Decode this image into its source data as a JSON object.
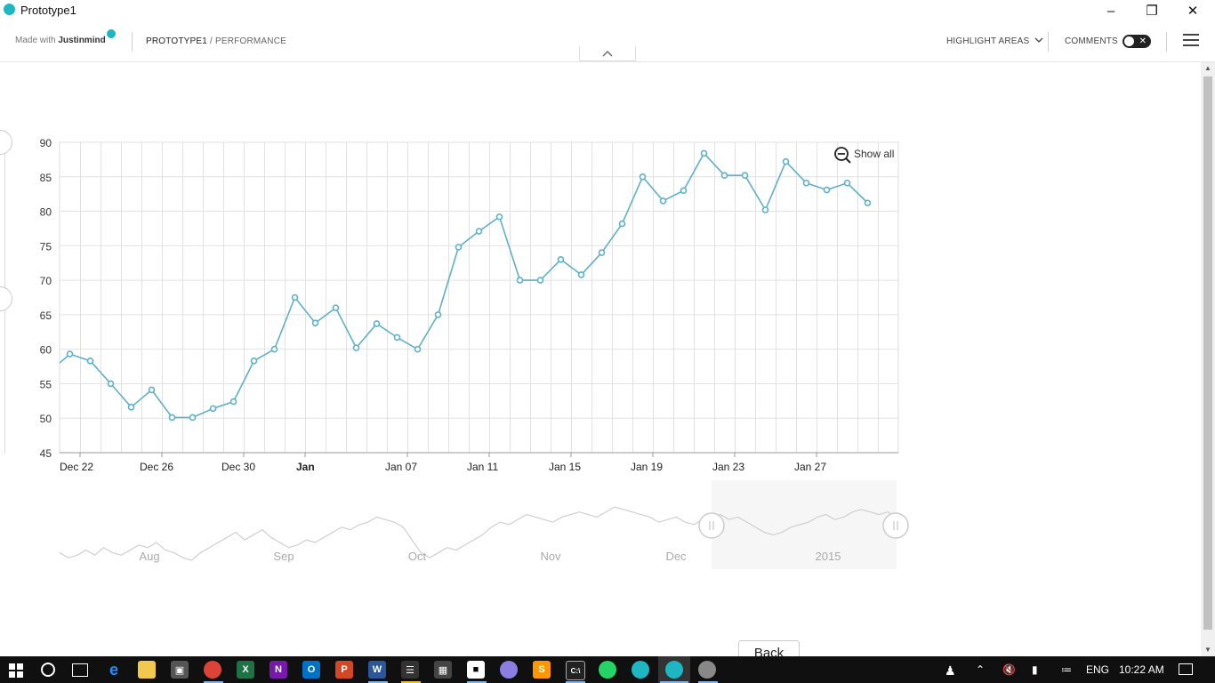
{
  "window": {
    "title": "Prototype1"
  },
  "header": {
    "made_with_prefix": "Made with",
    "made_with_brand": "Justinmind",
    "breadcrumb_project": "PROTOTYPE1",
    "breadcrumb_sep": " / ",
    "breadcrumb_page": "PERFORMANCE",
    "highlight_areas": "HIGHLIGHT AREAS",
    "comments": "COMMENTS",
    "comments_toggle_on": false
  },
  "chart_data": {
    "type": "line",
    "title": "",
    "xlabel": "",
    "ylabel": "",
    "ylim": [
      45,
      90
    ],
    "yticks": [
      45,
      50,
      55,
      60,
      65,
      70,
      75,
      80,
      85,
      90
    ],
    "xtick_labels": [
      "Dec 22",
      "Dec 26",
      "Dec 30",
      "Jan",
      "Jan 07",
      "Jan 11",
      "Jan 15",
      "Jan 19",
      "Jan 23",
      "Jan 27"
    ],
    "xtick_days": [
      1,
      5,
      9,
      12,
      17,
      21,
      25,
      29,
      33,
      37
    ],
    "grid": true,
    "zoom_button": "Show all",
    "series": [
      {
        "values": [
          58,
          59.3,
          58.3,
          55,
          51.6,
          54.1,
          50.1,
          50.1,
          51.4,
          52.4,
          58.3,
          60,
          67.5,
          63.8,
          66,
          60.2,
          63.7,
          61.7,
          60,
          65,
          74.8,
          77.1,
          79.2,
          70,
          70,
          73,
          70.8,
          74,
          78.2,
          85,
          81.5,
          83,
          88.4,
          85.2,
          85.2,
          80.2,
          87.2,
          84.1,
          83.1,
          84.1,
          81.2
        ],
        "days": [
          0,
          0.5,
          1.5,
          2.5,
          3.5,
          4.5,
          5.5,
          6.5,
          7.5,
          8.5,
          9.5,
          10.5,
          11.5,
          12.5,
          13.5,
          14.5,
          15.5,
          16.5,
          17.5,
          18.5,
          19.5,
          20.5,
          21.5,
          22.5,
          23.5,
          24.5,
          25.5,
          26.5,
          27.5,
          28.5,
          29.5,
          30.5,
          31.5,
          32.5,
          33.5,
          34.5,
          35.5,
          36.5,
          37.5,
          38.5,
          39.5
        ]
      }
    ],
    "navigator": {
      "labels": [
        "Aug",
        "Sep",
        "Oct",
        "Nov",
        "Dec",
        "2015"
      ],
      "values": [
        60,
        58,
        59,
        61,
        59,
        62,
        60,
        59,
        61,
        63,
        62,
        64,
        61,
        60,
        58,
        57,
        60,
        62,
        64,
        66,
        68,
        65,
        67,
        69,
        66,
        64,
        62,
        63,
        65,
        64,
        66,
        68,
        70,
        69,
        71,
        72,
        74,
        73,
        72,
        70,
        65,
        60,
        58,
        60,
        62,
        61,
        63,
        65,
        67,
        70,
        72,
        71,
        73,
        75,
        74,
        73,
        72,
        74,
        75,
        76,
        75,
        74,
        76,
        78,
        77,
        76,
        75,
        74,
        72,
        73,
        74,
        72,
        71,
        73,
        74,
        75,
        73,
        74,
        72,
        70,
        68,
        67,
        68,
        70,
        71,
        72,
        74,
        75,
        73,
        74,
        76,
        77,
        76,
        75,
        76,
        74
      ]
    }
  },
  "buttons": {
    "back": "Back"
  },
  "taskbar": {
    "time": "10:22 AM",
    "lang": "ENG",
    "apps": [
      "windows-logo",
      "search",
      "task-view",
      "edge",
      "file-explorer",
      "store",
      "chrome",
      "excel",
      "onenote",
      "outlook",
      "powerpoint",
      "word",
      "film",
      "calculator",
      "sticky-notes",
      "chrome-canary",
      "sublime",
      "cmd",
      "whatsapp",
      "justinmind",
      "justinmind-active",
      "paint"
    ]
  }
}
